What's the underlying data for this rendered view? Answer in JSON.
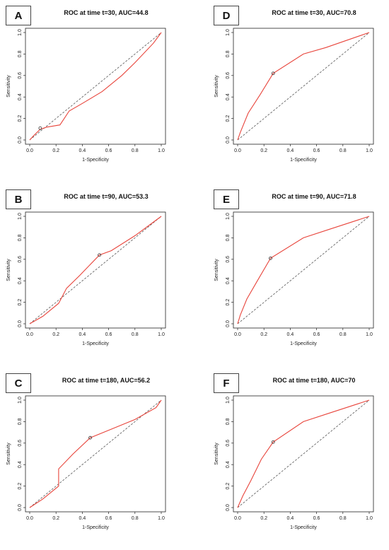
{
  "figure": {
    "xlabel": "1-Specificity",
    "ylabel": "Sensitivity"
  },
  "chart_data": [
    {
      "type": "line",
      "letter": "A",
      "title": "ROC at time t=30, AUC=44.8",
      "xlabel": "1-Specificity",
      "ylabel": "Sensitivity",
      "xlim": [
        0,
        1
      ],
      "ylim": [
        0,
        1
      ],
      "ticks": [
        "0.0",
        "0.2",
        "0.4",
        "0.6",
        "0.8",
        "1.0"
      ],
      "series": [
        {
          "values": [
            [
              0,
              0
            ],
            [
              0.03,
              0.04
            ],
            [
              0.08,
              0.1
            ],
            [
              0.13,
              0.12
            ],
            [
              0.23,
              0.14
            ],
            [
              0.3,
              0.27
            ],
            [
              0.4,
              0.34
            ],
            [
              0.55,
              0.45
            ],
            [
              0.7,
              0.6
            ],
            [
              0.8,
              0.72
            ],
            [
              0.94,
              0.9
            ],
            [
              1,
              1
            ]
          ]
        },
        {
          "values": [
            [
              0,
              0
            ],
            [
              1,
              1
            ]
          ]
        }
      ],
      "cutoff": [
        0.08,
        0.11
      ]
    },
    {
      "type": "line",
      "letter": "B",
      "title": "ROC at time t=90, AUC=53.3",
      "xlabel": "1-Specificity",
      "ylabel": "Sensitivity",
      "xlim": [
        0,
        1
      ],
      "ylim": [
        0,
        1
      ],
      "ticks": [
        "0.0",
        "0.2",
        "0.4",
        "0.6",
        "0.8",
        "1.0"
      ],
      "series": [
        {
          "values": [
            [
              0,
              0
            ],
            [
              0.1,
              0.07
            ],
            [
              0.22,
              0.19
            ],
            [
              0.25,
              0.26
            ],
            [
              0.28,
              0.33
            ],
            [
              0.38,
              0.45
            ],
            [
              0.53,
              0.64
            ],
            [
              0.62,
              0.68
            ],
            [
              0.8,
              0.82
            ],
            [
              1,
              1
            ]
          ]
        },
        {
          "values": [
            [
              0,
              0
            ],
            [
              1,
              1
            ]
          ]
        }
      ],
      "cutoff": [
        0.53,
        0.64
      ]
    },
    {
      "type": "line",
      "letter": "C",
      "title": "ROC at time t=180, AUC=56.2",
      "xlabel": "1-Specificity",
      "ylabel": "Sensitivity",
      "xlim": [
        0,
        1
      ],
      "ylim": [
        0,
        1
      ],
      "ticks": [
        "0.0",
        "0.2",
        "0.4",
        "0.6",
        "0.8",
        "1.0"
      ],
      "series": [
        {
          "values": [
            [
              0,
              0
            ],
            [
              0.1,
              0.08
            ],
            [
              0.22,
              0.2
            ],
            [
              0.22,
              0.36
            ],
            [
              0.33,
              0.5
            ],
            [
              0.46,
              0.65
            ],
            [
              0.6,
              0.72
            ],
            [
              0.8,
              0.82
            ],
            [
              0.96,
              0.93
            ],
            [
              1,
              1
            ]
          ]
        },
        {
          "values": [
            [
              0,
              0
            ],
            [
              1,
              1
            ]
          ]
        }
      ],
      "cutoff": [
        0.46,
        0.65
      ]
    },
    {
      "type": "line",
      "letter": "D",
      "title": "ROC at time t=30, AUC=70.8",
      "xlabel": "1-Specificity",
      "ylabel": "Sensitivity",
      "xlim": [
        0,
        1
      ],
      "ylim": [
        0,
        1
      ],
      "ticks": [
        "0.0",
        "0.2",
        "0.4",
        "0.6",
        "0.8",
        "1.0"
      ],
      "series": [
        {
          "values": [
            [
              0,
              0
            ],
            [
              0.02,
              0.07
            ],
            [
              0.08,
              0.25
            ],
            [
              0.17,
              0.42
            ],
            [
              0.27,
              0.62
            ],
            [
              0.5,
              0.8
            ],
            [
              0.67,
              0.86
            ],
            [
              1,
              1
            ]
          ]
        },
        {
          "values": [
            [
              0,
              0
            ],
            [
              1,
              1
            ]
          ]
        }
      ],
      "cutoff": [
        0.27,
        0.62
      ]
    },
    {
      "type": "line",
      "letter": "E",
      "title": "ROC at time t=90, AUC=71.8",
      "xlabel": "1-Specificity",
      "ylabel": "Sensitivity",
      "xlim": [
        0,
        1
      ],
      "ylim": [
        0,
        1
      ],
      "ticks": [
        "0.0",
        "0.2",
        "0.4",
        "0.6",
        "0.8",
        "1.0"
      ],
      "series": [
        {
          "values": [
            [
              0,
              0
            ],
            [
              0.02,
              0.08
            ],
            [
              0.07,
              0.23
            ],
            [
              0.15,
              0.4
            ],
            [
              0.25,
              0.61
            ],
            [
              0.5,
              0.8
            ],
            [
              0.7,
              0.88
            ],
            [
              1,
              1
            ]
          ]
        },
        {
          "values": [
            [
              0,
              0
            ],
            [
              1,
              1
            ]
          ]
        }
      ],
      "cutoff": [
        0.25,
        0.61
      ]
    },
    {
      "type": "line",
      "letter": "F",
      "title": "ROC at time t=180, AUC=70",
      "xlabel": "1-Specificity",
      "ylabel": "Sensitivity",
      "xlim": [
        0,
        1
      ],
      "ylim": [
        0,
        1
      ],
      "ticks": [
        "0.0",
        "0.2",
        "0.4",
        "0.6",
        "0.8",
        "1.0"
      ],
      "series": [
        {
          "values": [
            [
              0,
              0
            ],
            [
              0.04,
              0.11
            ],
            [
              0.1,
              0.25
            ],
            [
              0.18,
              0.45
            ],
            [
              0.27,
              0.61
            ],
            [
              0.5,
              0.8
            ],
            [
              0.7,
              0.88
            ],
            [
              1,
              1
            ]
          ]
        },
        {
          "values": [
            [
              0,
              0
            ],
            [
              1,
              1
            ]
          ]
        }
      ],
      "cutoff": [
        0.27,
        0.61
      ]
    }
  ],
  "colors": {
    "roc": "#e8453c",
    "diagonal": "#555555",
    "axis": "#222222"
  }
}
